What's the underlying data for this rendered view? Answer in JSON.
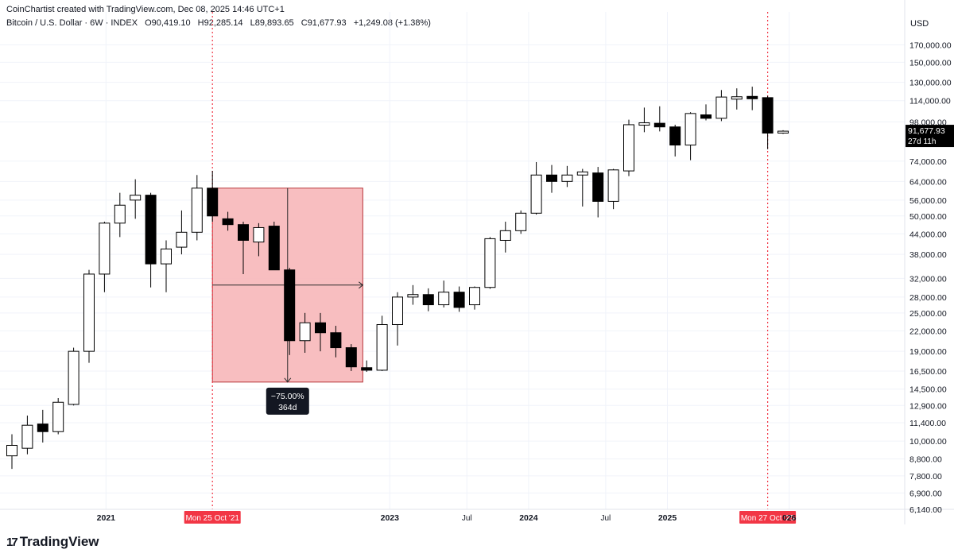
{
  "header": {
    "credit": "CoinChartist created with TradingView.com, Dec 08, 2025 14:46 UTC+1",
    "symbol": "Bitcoin / U.S. Dollar · 6W · INDEX",
    "open": "O90,419.10",
    "high": "H92,285.14",
    "low": "L89,893.65",
    "close": "C91,677.93",
    "change": "+1,249.08 (+1.38%)"
  },
  "brand": {
    "name": "TradingView",
    "mark": "17"
  },
  "colors": {
    "up_body": "#ffffff",
    "down_body": "#000000",
    "grid": "#f0f3fa",
    "measure_fill": "#f7b7b9",
    "measure_stroke": "#e03038",
    "marker": "#f23645"
  },
  "chart_data": {
    "type": "candlestick",
    "currency": "USD",
    "scale": "log",
    "ylim": [
      6140,
      215000
    ],
    "price_ticks": [
      170000,
      150000,
      130000,
      114000,
      98000,
      74000,
      64000,
      56000,
      50000,
      44000,
      38000,
      32000,
      28000,
      25000,
      22000,
      19000,
      16500,
      14500,
      12900,
      11400,
      10000,
      8800,
      7800,
      6900,
      6140
    ],
    "price_tick_labels": [
      "170,000.00",
      "150,000.00",
      "130,000.00",
      "114,000.00",
      "98,000.00",
      "74,000.00",
      "64,000.00",
      "56,000.00",
      "50,000.00",
      "44,000.00",
      "38,000.00",
      "32,000.00",
      "28,000.00",
      "25,000.00",
      "22,000.00",
      "19,000.00",
      "16,500.00",
      "14,500.00",
      "12,900.00",
      "11,400.00",
      "10,000.00",
      "8,800.00",
      "7,800.00",
      "6,900.00",
      "6,140.00"
    ],
    "time_labels": [
      {
        "label": "2021",
        "index": 6.1
      },
      {
        "label": "Mon 25 Oct '21",
        "index": 13,
        "marker": true
      },
      {
        "label": "2023",
        "index": 24.5
      },
      {
        "label": "Jul",
        "index": 29.5
      },
      {
        "label": "2024",
        "index": 33.5
      },
      {
        "label": "Jul",
        "index": 38.5
      },
      {
        "label": "2025",
        "index": 42.5
      },
      {
        "label": "Mon 27 Oct '25",
        "index": 49,
        "marker": true
      },
      {
        "label": "026",
        "index": 50.4
      }
    ],
    "candles": [
      {
        "o": 9000,
        "h": 10500,
        "l": 8200,
        "c": 9700
      },
      {
        "o": 9500,
        "h": 12000,
        "l": 9100,
        "c": 11200
      },
      {
        "o": 11300,
        "h": 12500,
        "l": 9900,
        "c": 10700
      },
      {
        "o": 10700,
        "h": 13600,
        "l": 10500,
        "c": 13200
      },
      {
        "o": 13000,
        "h": 19500,
        "l": 12900,
        "c": 19000
      },
      {
        "o": 19000,
        "h": 34000,
        "l": 17500,
        "c": 33000
      },
      {
        "o": 33000,
        "h": 48000,
        "l": 29000,
        "c": 47500
      },
      {
        "o": 47500,
        "h": 59000,
        "l": 43000,
        "c": 54000
      },
      {
        "o": 56000,
        "h": 65000,
        "l": 49000,
        "c": 58000
      },
      {
        "o": 58000,
        "h": 59000,
        "l": 30000,
        "c": 35500
      },
      {
        "o": 35500,
        "h": 42000,
        "l": 29000,
        "c": 39500
      },
      {
        "o": 40000,
        "h": 52000,
        "l": 38000,
        "c": 44500
      },
      {
        "o": 44500,
        "h": 67000,
        "l": 42000,
        "c": 61000
      },
      {
        "o": 61000,
        "h": 69000,
        "l": 48000,
        "c": 50000
      },
      {
        "o": 49000,
        "h": 51500,
        "l": 45000,
        "c": 47000
      },
      {
        "o": 47000,
        "h": 48000,
        "l": 33000,
        "c": 42000
      },
      {
        "o": 41500,
        "h": 47500,
        "l": 37500,
        "c": 46000
      },
      {
        "o": 46500,
        "h": 48000,
        "l": 35000,
        "c": 34000
      },
      {
        "o": 34000,
        "h": 34500,
        "l": 18500,
        "c": 20500
      },
      {
        "o": 20500,
        "h": 25000,
        "l": 18800,
        "c": 23300
      },
      {
        "o": 23300,
        "h": 25000,
        "l": 19000,
        "c": 21700
      },
      {
        "o": 21700,
        "h": 22800,
        "l": 18200,
        "c": 19500
      },
      {
        "o": 19500,
        "h": 20000,
        "l": 16500,
        "c": 17000
      },
      {
        "o": 16900,
        "h": 17800,
        "l": 16400,
        "c": 16600
      },
      {
        "o": 16600,
        "h": 24500,
        "l": 16500,
        "c": 23000
      },
      {
        "o": 23000,
        "h": 29000,
        "l": 19800,
        "c": 28000
      },
      {
        "o": 28000,
        "h": 30500,
        "l": 26500,
        "c": 28500
      },
      {
        "o": 28500,
        "h": 29800,
        "l": 25300,
        "c": 26500
      },
      {
        "o": 26500,
        "h": 31500,
        "l": 26000,
        "c": 29000
      },
      {
        "o": 29000,
        "h": 30200,
        "l": 25200,
        "c": 26000
      },
      {
        "o": 26500,
        "h": 30200,
        "l": 25600,
        "c": 30000
      },
      {
        "o": 30000,
        "h": 43000,
        "l": 29700,
        "c": 42500
      },
      {
        "o": 42000,
        "h": 48000,
        "l": 38500,
        "c": 45000
      },
      {
        "o": 45000,
        "h": 52000,
        "l": 44000,
        "c": 51000
      },
      {
        "o": 51000,
        "h": 73500,
        "l": 50500,
        "c": 67000
      },
      {
        "o": 67000,
        "h": 72000,
        "l": 59000,
        "c": 64000
      },
      {
        "o": 64000,
        "h": 71500,
        "l": 61500,
        "c": 67000
      },
      {
        "o": 67000,
        "h": 70000,
        "l": 53500,
        "c": 68500
      },
      {
        "o": 68000,
        "h": 71000,
        "l": 49500,
        "c": 55500
      },
      {
        "o": 55500,
        "h": 70000,
        "l": 52500,
        "c": 69500
      },
      {
        "o": 69000,
        "h": 99500,
        "l": 66500,
        "c": 96000
      },
      {
        "o": 96000,
        "h": 108500,
        "l": 91000,
        "c": 97000
      },
      {
        "o": 97000,
        "h": 109500,
        "l": 91500,
        "c": 94500
      },
      {
        "o": 94500,
        "h": 96000,
        "l": 76500,
        "c": 83000
      },
      {
        "o": 83000,
        "h": 105000,
        "l": 74500,
        "c": 104000
      },
      {
        "o": 103000,
        "h": 111000,
        "l": 99000,
        "c": 100500
      },
      {
        "o": 100500,
        "h": 123000,
        "l": 98500,
        "c": 117000
      },
      {
        "o": 116000,
        "h": 124500,
        "l": 107000,
        "c": 116500
      },
      {
        "o": 116800,
        "h": 126000,
        "l": 106500,
        "c": 116300
      },
      {
        "o": 116500,
        "h": 118000,
        "l": 80600,
        "c": 90400
      },
      {
        "o": 90419.1,
        "h": 92285.14,
        "l": 89893.65,
        "c": 91677.93
      }
    ],
    "measure": {
      "from_index": 13,
      "to_index": 22.75,
      "price_top": 61000,
      "price_bottom": 15250,
      "percent_label": "−75.00%",
      "duration_label": "364d"
    },
    "last_price": {
      "price_label": "91,677.93",
      "countdown": "27d 11h",
      "value": 91677.93
    }
  }
}
